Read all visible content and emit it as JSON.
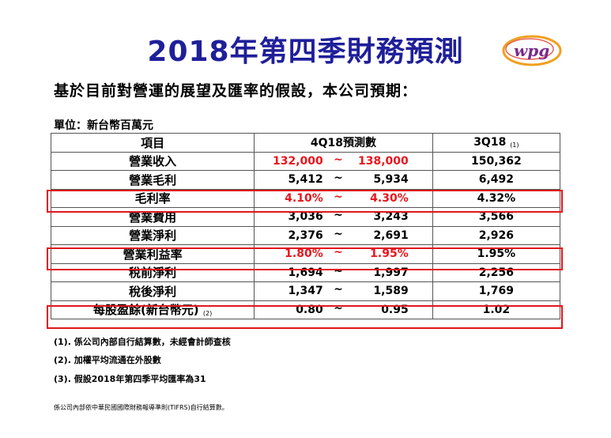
{
  "title": "2018年第四季財務預測",
  "logo_text": "wpg",
  "subtitle": "基於目前對營運的展望及匯率的假設，本公司預期：",
  "unit": "單位：新台幣百萬元",
  "headers": {
    "item": "項目",
    "forecast": "4Q18預測數",
    "prev": "3Q18",
    "prev_note": "(1)"
  },
  "rows": [
    {
      "item": "營業收入",
      "low": "132,000",
      "tilde": "~",
      "high": "138,000",
      "prev": "150,362"
    },
    {
      "item": "營業毛利",
      "low": "5,412",
      "tilde": "~",
      "high": "5,934",
      "prev": "6,492"
    },
    {
      "item": "毛利率",
      "low": "4.10%",
      "tilde": "~",
      "high": "4.30%",
      "prev": "4.32%"
    },
    {
      "item": "營業費用",
      "low": "3,036",
      "tilde": "~",
      "high": "3,243",
      "prev": "3,566"
    },
    {
      "item": "營業淨利",
      "low": "2,376",
      "tilde": "~",
      "high": "2,691",
      "prev": "2,926"
    },
    {
      "item": "營業利益率",
      "low": "1.80%",
      "tilde": "~",
      "high": "1.95%",
      "prev": "1.95%"
    },
    {
      "item": "稅前淨利",
      "low": "1,694",
      "tilde": "~",
      "high": "1,997",
      "prev": "2,256"
    },
    {
      "item": "稅後淨利",
      "low": "1,347",
      "tilde": "~",
      "high": "1,589",
      "prev": "1,769"
    },
    {
      "item": "每股盈餘(新台幣元)",
      "item_note": "(2)",
      "low": "0.80",
      "tilde": "~",
      "high": "0.95",
      "prev": "1.02"
    }
  ],
  "notes": [
    "(1). 係公司內部自行結算數，未經會計師查核",
    "(2). 加權平均流通在外股數",
    "(3). 假設2018年第四季平均匯率為31"
  ],
  "footer": "係公司內部依中華民國國際財務報導準則(TIFRS)自行結算數。",
  "colors": {
    "title": "#1f1f9a",
    "highlight": "#e0161c",
    "red_text": "#e8161c"
  }
}
